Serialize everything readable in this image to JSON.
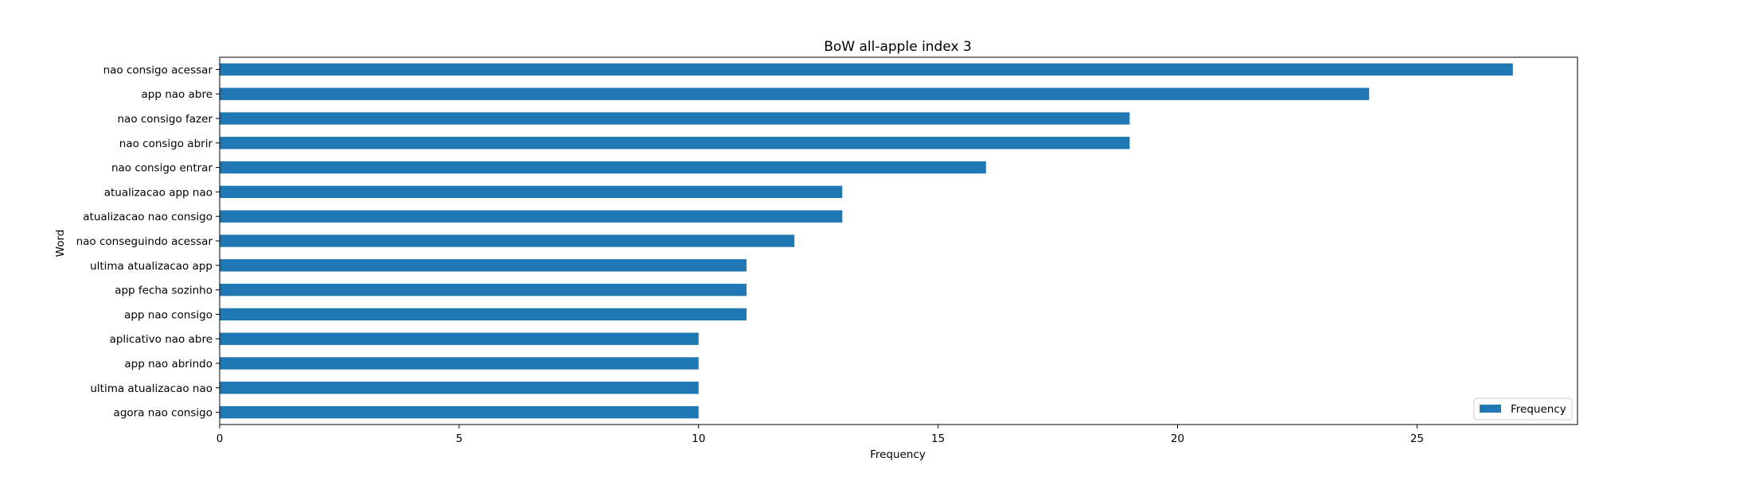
{
  "chart_data": {
    "type": "bar",
    "orientation": "horizontal",
    "title": "BoW all-apple index 3",
    "xlabel": "Frequency",
    "ylabel": "Word",
    "xlim": [
      0,
      28.35
    ],
    "xticks": [
      0,
      5,
      10,
      15,
      20,
      25
    ],
    "grid": false,
    "legend_position": "lower right",
    "categories": [
      "nao consigo acessar",
      "app nao abre",
      "nao consigo fazer",
      "nao consigo abrir",
      "nao consigo entrar",
      "atualizacao app nao",
      "atualizacao nao consigo",
      "nao conseguindo acessar",
      "ultima atualizacao app",
      "app fecha sozinho",
      "app nao consigo",
      "aplicativo nao abre",
      "app nao abrindo",
      "ultima atualizacao nao",
      "agora nao consigo"
    ],
    "series": [
      {
        "name": "Frequency",
        "color": "#1f77b4",
        "values": [
          27,
          24,
          19,
          19,
          16,
          13,
          13,
          12,
          11,
          11,
          11,
          10,
          10,
          10,
          10
        ]
      }
    ]
  }
}
